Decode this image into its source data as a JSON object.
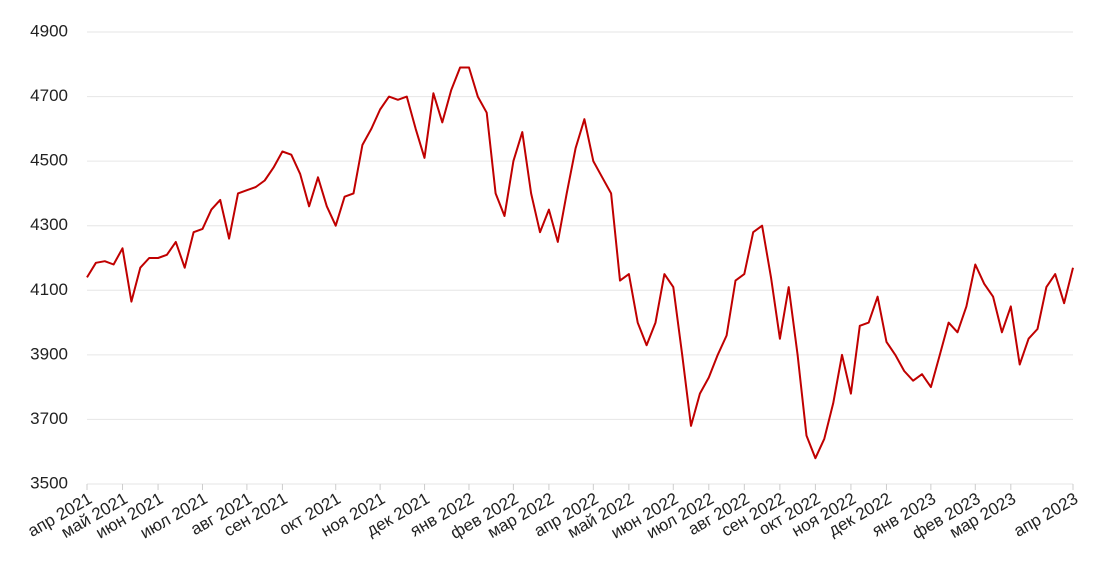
{
  "chart_data": {
    "type": "line",
    "categories": [
      "апр 2021",
      null,
      null,
      null,
      "май 2021",
      null,
      null,
      null,
      "июн 2021",
      null,
      null,
      null,
      null,
      "июл 2021",
      null,
      null,
      null,
      null,
      "авг 2021",
      null,
      null,
      null,
      "сен 2021",
      null,
      null,
      null,
      null,
      null,
      "окт 2021",
      null,
      null,
      null,
      null,
      "ноя 2021",
      null,
      null,
      null,
      null,
      "дек 2021",
      null,
      null,
      null,
      null,
      "янв 2022",
      null,
      null,
      null,
      null,
      "фев 2022",
      null,
      null,
      null,
      "мар 2022",
      null,
      null,
      null,
      null,
      "апр 2022",
      null,
      null,
      null,
      "май 2022",
      null,
      null,
      null,
      null,
      "июн 2022",
      null,
      null,
      null,
      "июл 2022",
      null,
      null,
      null,
      "авг 2022",
      null,
      null,
      null,
      "сен 2022",
      null,
      null,
      null,
      "окт 2022",
      null,
      null,
      null,
      "ноя 2022",
      null,
      null,
      null,
      "дек 2022",
      null,
      null,
      null,
      null,
      "янв 2023",
      null,
      null,
      null,
      null,
      "фев 2023",
      null,
      null,
      null,
      "мар 2023",
      null,
      null,
      null,
      null,
      null,
      null,
      "апр 2023"
    ],
    "values": [
      4140,
      4185,
      4190,
      4180,
      4230,
      4065,
      4170,
      4200,
      4200,
      4210,
      4250,
      4170,
      4280,
      4290,
      4350,
      4380,
      4260,
      4400,
      4410,
      4420,
      4440,
      4480,
      4530,
      4520,
      4460,
      4360,
      4450,
      4360,
      4300,
      4390,
      4400,
      4550,
      4600,
      4660,
      4700,
      4690,
      4700,
      4600,
      4510,
      4710,
      4620,
      4720,
      4790,
      4790,
      4700,
      4650,
      4400,
      4330,
      4500,
      4590,
      4400,
      4280,
      4350,
      4250,
      4400,
      4540,
      4630,
      4500,
      4450,
      4400,
      4130,
      4150,
      4000,
      3930,
      4000,
      4150,
      4110,
      3900,
      3680,
      3780,
      3830,
      3900,
      3960,
      4130,
      4150,
      4280,
      4300,
      4140,
      3950,
      4110,
      3900,
      3650,
      3580,
      3640,
      3750,
      3900,
      3780,
      3990,
      4000,
      4080,
      3940,
      3900,
      3850,
      3820,
      3840,
      3800,
      3900,
      4000,
      3970,
      4050,
      4180,
      4120,
      4080,
      3970,
      4050,
      3870,
      3950,
      3980,
      4110,
      4150,
      4060,
      4170
    ],
    "color": "#c00000",
    "ylim": [
      3500,
      4900
    ],
    "yticks": [
      3500,
      3700,
      3900,
      4100,
      4300,
      4500,
      4700,
      4900
    ],
    "grid": true
  }
}
